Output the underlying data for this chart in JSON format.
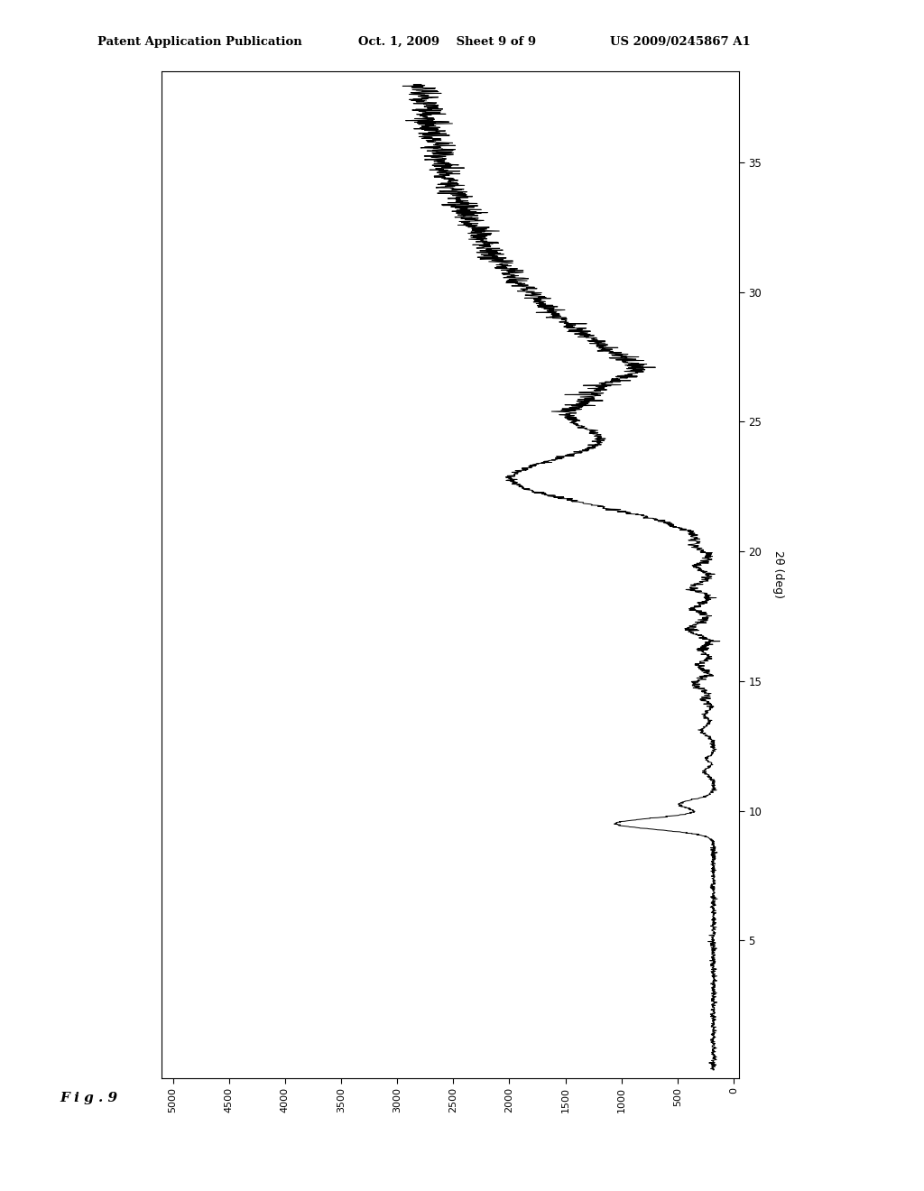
{
  "header_left": "Patent Application Publication",
  "header_center": "Oct. 1, 2009    Sheet 9 of 9",
  "header_right": "US 2009/0245867 A1",
  "fig_label": "F i g . 9",
  "xlabel": "2θ (deg)",
  "y_ticks": [
    0,
    500,
    1000,
    1500,
    2000,
    2500,
    3000,
    3500,
    4000,
    4500,
    5000
  ],
  "x_ticks": [
    5,
    10,
    15,
    20,
    25,
    30,
    35
  ],
  "background": "#ffffff",
  "line_color": "#000000",
  "intensity_max": 5000,
  "twotheta_max": 38
}
